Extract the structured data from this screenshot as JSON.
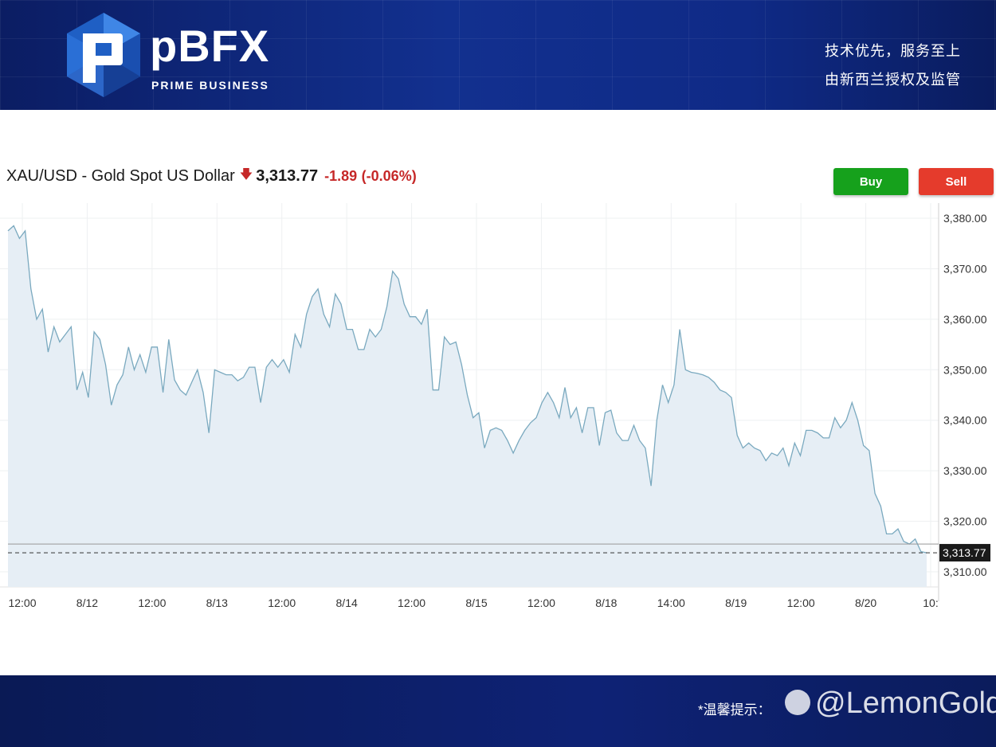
{
  "banner": {
    "logo_text": "pBFX",
    "logo_subtitle": "PRIME BUSINESS",
    "slogan_line1": "技术优先，服务至上",
    "slogan_line2": "由新西兰授权及监管"
  },
  "header": {
    "symbol": "XAU/USD - Gold Spot US Dollar",
    "price": "3,313.77",
    "change": "-1.89",
    "change_pct": "(-0.06%)"
  },
  "buttons": {
    "buy": "Buy",
    "sell": "Sell"
  },
  "footer": {
    "notice": "*温馨提示：",
    "watermark": "@LemonGold"
  },
  "colors": {
    "line": "#7aa9bf",
    "area": "#e6eef5",
    "buy": "#16a11c",
    "sell": "#e53b2c",
    "down": "#c62828"
  },
  "chart_data": {
    "type": "area",
    "title": "XAU/USD - Gold Spot US Dollar",
    "x_tick_labels": [
      "12:00",
      "8/12",
      "12:00",
      "8/13",
      "12:00",
      "8/14",
      "12:00",
      "8/15",
      "12:00",
      "8/18",
      "14:00",
      "8/19",
      "12:00",
      "8/20",
      "10:"
    ],
    "y_tick_labels": [
      "3,380.00",
      "3,370.00",
      "3,360.00",
      "3,350.00",
      "3,340.00",
      "3,330.00",
      "3,320.00",
      "3,310.00"
    ],
    "ylim": [
      3307,
      3383
    ],
    "grid": true,
    "last_price_label": "3,313.77",
    "values": [
      3377.5,
      3378.5,
      3376,
      3377.5,
      3366,
      3360,
      3362,
      3353.5,
      3358.5,
      3355.5,
      3357,
      3358.5,
      3346,
      3349.5,
      3344.5,
      3357.5,
      3356,
      3351,
      3343,
      3347,
      3349,
      3354.5,
      3350,
      3353,
      3349.5,
      3354.5,
      3354.5,
      3345.5,
      3356,
      3348,
      3346,
      3345,
      3347.5,
      3350,
      3345.5,
      3337.5,
      3350,
      3349.5,
      3349,
      3349,
      3347.8,
      3348.5,
      3350.5,
      3350.5,
      3343.5,
      3350.5,
      3352,
      3350.5,
      3352,
      3349.5,
      3357,
      3354.5,
      3361,
      3364.5,
      3366,
      3361,
      3358.5,
      3365,
      3363,
      3358,
      3358,
      3354,
      3354,
      3358,
      3356.5,
      3358,
      3362.5,
      3369.5,
      3368,
      3363,
      3360.5,
      3360.5,
      3359,
      3362,
      3346,
      3346,
      3356.5,
      3355,
      3355.5,
      3351,
      3345,
      3340.5,
      3341.5,
      3334.5,
      3338,
      3338.5,
      3338,
      3336,
      3333.5,
      3336,
      3338,
      3339.5,
      3340.5,
      3343.5,
      3345.5,
      3343.5,
      3340.5,
      3346.5,
      3340.5,
      3342.5,
      3337.5,
      3342.5,
      3342.5,
      3335,
      3341.5,
      3342,
      3337.5,
      3336,
      3336,
      3339,
      3336,
      3334.5,
      3327,
      3340,
      3347,
      3343.5,
      3347,
      3358,
      3350,
      3349.5,
      3349.3,
      3349,
      3348.5,
      3347.5,
      3346,
      3345.5,
      3344.5,
      3337,
      3334.5,
      3335.5,
      3334.5,
      3334,
      3332,
      3333.5,
      3333,
      3334.5,
      3331,
      3335.5,
      3333,
      3338,
      3338,
      3337.5,
      3336.5,
      3336.5,
      3340.5,
      3338.5,
      3340,
      3343.5,
      3340,
      3335,
      3334,
      3325.5,
      3323,
      3317.5,
      3317.5,
      3318.5,
      3316,
      3315.5,
      3316.5,
      3314,
      3313.77
    ]
  }
}
